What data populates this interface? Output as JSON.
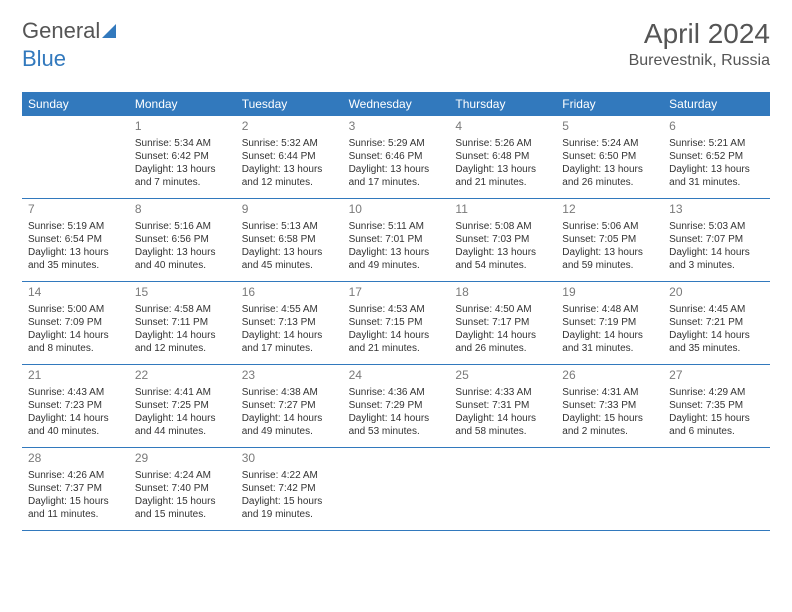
{
  "logo": {
    "text1": "General",
    "text2": "Blue"
  },
  "header": {
    "month": "April 2024",
    "location": "Burevestnik, Russia"
  },
  "colors": {
    "brand": "#3279bd",
    "text": "#333333",
    "muted": "#7a7a7a",
    "bg": "#ffffff"
  },
  "daynames": [
    "Sunday",
    "Monday",
    "Tuesday",
    "Wednesday",
    "Thursday",
    "Friday",
    "Saturday"
  ],
  "weeks": [
    [
      null,
      {
        "n": "1",
        "sr": "5:34 AM",
        "ss": "6:42 PM",
        "dl": "13 hours and 7 minutes."
      },
      {
        "n": "2",
        "sr": "5:32 AM",
        "ss": "6:44 PM",
        "dl": "13 hours and 12 minutes."
      },
      {
        "n": "3",
        "sr": "5:29 AM",
        "ss": "6:46 PM",
        "dl": "13 hours and 17 minutes."
      },
      {
        "n": "4",
        "sr": "5:26 AM",
        "ss": "6:48 PM",
        "dl": "13 hours and 21 minutes."
      },
      {
        "n": "5",
        "sr": "5:24 AM",
        "ss": "6:50 PM",
        "dl": "13 hours and 26 minutes."
      },
      {
        "n": "6",
        "sr": "5:21 AM",
        "ss": "6:52 PM",
        "dl": "13 hours and 31 minutes."
      }
    ],
    [
      {
        "n": "7",
        "sr": "5:19 AM",
        "ss": "6:54 PM",
        "dl": "13 hours and 35 minutes."
      },
      {
        "n": "8",
        "sr": "5:16 AM",
        "ss": "6:56 PM",
        "dl": "13 hours and 40 minutes."
      },
      {
        "n": "9",
        "sr": "5:13 AM",
        "ss": "6:58 PM",
        "dl": "13 hours and 45 minutes."
      },
      {
        "n": "10",
        "sr": "5:11 AM",
        "ss": "7:01 PM",
        "dl": "13 hours and 49 minutes."
      },
      {
        "n": "11",
        "sr": "5:08 AM",
        "ss": "7:03 PM",
        "dl": "13 hours and 54 minutes."
      },
      {
        "n": "12",
        "sr": "5:06 AM",
        "ss": "7:05 PM",
        "dl": "13 hours and 59 minutes."
      },
      {
        "n": "13",
        "sr": "5:03 AM",
        "ss": "7:07 PM",
        "dl": "14 hours and 3 minutes."
      }
    ],
    [
      {
        "n": "14",
        "sr": "5:00 AM",
        "ss": "7:09 PM",
        "dl": "14 hours and 8 minutes."
      },
      {
        "n": "15",
        "sr": "4:58 AM",
        "ss": "7:11 PM",
        "dl": "14 hours and 12 minutes."
      },
      {
        "n": "16",
        "sr": "4:55 AM",
        "ss": "7:13 PM",
        "dl": "14 hours and 17 minutes."
      },
      {
        "n": "17",
        "sr": "4:53 AM",
        "ss": "7:15 PM",
        "dl": "14 hours and 21 minutes."
      },
      {
        "n": "18",
        "sr": "4:50 AM",
        "ss": "7:17 PM",
        "dl": "14 hours and 26 minutes."
      },
      {
        "n": "19",
        "sr": "4:48 AM",
        "ss": "7:19 PM",
        "dl": "14 hours and 31 minutes."
      },
      {
        "n": "20",
        "sr": "4:45 AM",
        "ss": "7:21 PM",
        "dl": "14 hours and 35 minutes."
      }
    ],
    [
      {
        "n": "21",
        "sr": "4:43 AM",
        "ss": "7:23 PM",
        "dl": "14 hours and 40 minutes."
      },
      {
        "n": "22",
        "sr": "4:41 AM",
        "ss": "7:25 PM",
        "dl": "14 hours and 44 minutes."
      },
      {
        "n": "23",
        "sr": "4:38 AM",
        "ss": "7:27 PM",
        "dl": "14 hours and 49 minutes."
      },
      {
        "n": "24",
        "sr": "4:36 AM",
        "ss": "7:29 PM",
        "dl": "14 hours and 53 minutes."
      },
      {
        "n": "25",
        "sr": "4:33 AM",
        "ss": "7:31 PM",
        "dl": "14 hours and 58 minutes."
      },
      {
        "n": "26",
        "sr": "4:31 AM",
        "ss": "7:33 PM",
        "dl": "15 hours and 2 minutes."
      },
      {
        "n": "27",
        "sr": "4:29 AM",
        "ss": "7:35 PM",
        "dl": "15 hours and 6 minutes."
      }
    ],
    [
      {
        "n": "28",
        "sr": "4:26 AM",
        "ss": "7:37 PM",
        "dl": "15 hours and 11 minutes."
      },
      {
        "n": "29",
        "sr": "4:24 AM",
        "ss": "7:40 PM",
        "dl": "15 hours and 15 minutes."
      },
      {
        "n": "30",
        "sr": "4:22 AM",
        "ss": "7:42 PM",
        "dl": "15 hours and 19 minutes."
      },
      null,
      null,
      null,
      null
    ]
  ],
  "labels": {
    "sunrise": "Sunrise:",
    "sunset": "Sunset:",
    "daylight": "Daylight:"
  }
}
